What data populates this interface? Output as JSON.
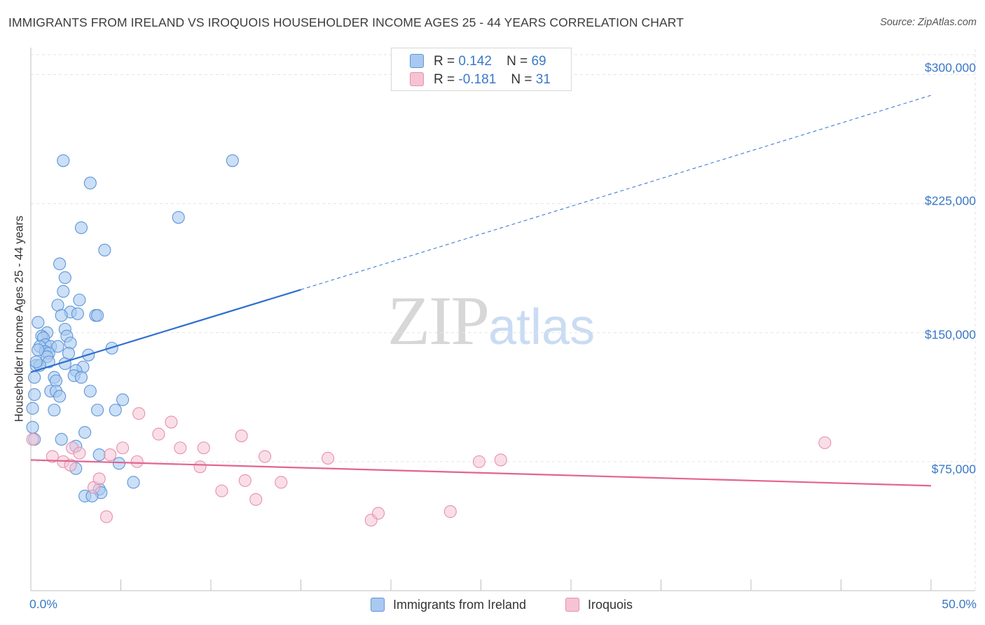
{
  "title": "IMMIGRANTS FROM IRELAND VS IROQUOIS HOUSEHOLDER INCOME AGES 25 - 44 YEARS CORRELATION CHART",
  "source": "Source: ZipAtlas.com",
  "watermark": {
    "zip": "ZIP",
    "atlas": "atlas"
  },
  "legend": {
    "r_label": "R =",
    "n_label": "N =",
    "series": [
      {
        "name": "Immigrants from Ireland",
        "r": "0.142",
        "n": "69"
      },
      {
        "name": "Iroquois",
        "r": "-0.181",
        "n": "31"
      }
    ]
  },
  "colors": {
    "blue_fill": "#a9c9f0",
    "blue_stroke": "#5d95d8",
    "blue_line": "#2f6fcf",
    "pink_fill": "#f6c3d3",
    "pink_stroke": "#e690ad",
    "pink_line": "#e2648f",
    "tick_text": "#3a78c8",
    "grid": "#e3e3e3"
  },
  "chart_data": {
    "type": "scatter",
    "title": "IMMIGRANTS FROM IRELAND VS IROQUOIS HOUSEHOLDER INCOME AGES 25 - 44 YEARS CORRELATION CHART",
    "xlabel": "",
    "ylabel": "Householder Income Ages 25 - 44 years",
    "xlim": [
      0,
      50
    ],
    "ylim": [
      0,
      310000
    ],
    "x_tick_labels": [
      "0.0%",
      "50.0%"
    ],
    "y_ticks": [
      {
        "value": 75000,
        "label": "$75,000"
      },
      {
        "value": 150000,
        "label": "$150,000"
      },
      {
        "value": 225000,
        "label": "$225,000"
      },
      {
        "value": 300000,
        "label": "$300,000"
      }
    ],
    "grid": true,
    "series": [
      {
        "name": "Immigrants from Ireland",
        "color": "#a9c9f0",
        "points": [
          [
            1.8,
            250000
          ],
          [
            11.2,
            250000
          ],
          [
            3.3,
            237000
          ],
          [
            8.2,
            217000
          ],
          [
            2.8,
            211000
          ],
          [
            4.1,
            198000
          ],
          [
            1.6,
            190000
          ],
          [
            1.9,
            182000
          ],
          [
            1.8,
            174000
          ],
          [
            2.7,
            169000
          ],
          [
            1.5,
            166000
          ],
          [
            2.2,
            162000
          ],
          [
            1.7,
            160000
          ],
          [
            2.6,
            161000
          ],
          [
            3.6,
            160000
          ],
          [
            3.7,
            160000
          ],
          [
            0.4,
            156000
          ],
          [
            1.9,
            152000
          ],
          [
            0.9,
            150000
          ],
          [
            0.6,
            148000
          ],
          [
            2.0,
            148000
          ],
          [
            0.7,
            147000
          ],
          [
            2.2,
            144000
          ],
          [
            0.8,
            143000
          ],
          [
            1.1,
            142000
          ],
          [
            1.5,
            142000
          ],
          [
            0.5,
            142000
          ],
          [
            4.5,
            141000
          ],
          [
            0.8,
            139000
          ],
          [
            1.0,
            138000
          ],
          [
            0.9,
            136000
          ],
          [
            3.2,
            137000
          ],
          [
            1.0,
            133000
          ],
          [
            1.9,
            132000
          ],
          [
            0.3,
            131000
          ],
          [
            0.5,
            131000
          ],
          [
            2.9,
            130000
          ],
          [
            2.5,
            128000
          ],
          [
            2.4,
            125000
          ],
          [
            1.3,
            124000
          ],
          [
            2.8,
            124000
          ],
          [
            1.4,
            122000
          ],
          [
            0.2,
            124000
          ],
          [
            3.3,
            116000
          ],
          [
            1.1,
            116000
          ],
          [
            1.4,
            116000
          ],
          [
            0.2,
            114000
          ],
          [
            1.6,
            113000
          ],
          [
            5.1,
            111000
          ],
          [
            0.1,
            106000
          ],
          [
            1.3,
            105000
          ],
          [
            3.7,
            105000
          ],
          [
            4.7,
            105000
          ],
          [
            0.1,
            95000
          ],
          [
            3.0,
            92000
          ],
          [
            1.7,
            88000
          ],
          [
            2.5,
            84000
          ],
          [
            3.8,
            79000
          ],
          [
            4.9,
            74000
          ],
          [
            2.5,
            71000
          ],
          [
            5.7,
            63000
          ],
          [
            3.8,
            59000
          ],
          [
            3.9,
            57000
          ],
          [
            3.0,
            55000
          ],
          [
            3.4,
            55000
          ],
          [
            0.2,
            88000
          ],
          [
            0.4,
            140000
          ],
          [
            0.3,
            133000
          ],
          [
            2.1,
            138000
          ]
        ],
        "trend": {
          "x": [
            0,
            15,
            50
          ],
          "y": [
            127000,
            175000,
            288000
          ]
        }
      },
      {
        "name": "Iroquois",
        "color": "#f6c3d3",
        "points": [
          [
            0.1,
            88000
          ],
          [
            1.2,
            78000
          ],
          [
            2.3,
            83000
          ],
          [
            1.8,
            75000
          ],
          [
            2.2,
            73000
          ],
          [
            2.7,
            80000
          ],
          [
            3.5,
            60000
          ],
          [
            3.8,
            65000
          ],
          [
            4.2,
            43000
          ],
          [
            4.4,
            79000
          ],
          [
            5.1,
            83000
          ],
          [
            5.9,
            75000
          ],
          [
            6.0,
            103000
          ],
          [
            7.1,
            91000
          ],
          [
            7.8,
            98000
          ],
          [
            8.3,
            83000
          ],
          [
            9.4,
            72000
          ],
          [
            9.6,
            83000
          ],
          [
            10.6,
            58000
          ],
          [
            11.7,
            90000
          ],
          [
            11.9,
            64000
          ],
          [
            12.5,
            53000
          ],
          [
            13.0,
            78000
          ],
          [
            13.9,
            63000
          ],
          [
            16.5,
            77000
          ],
          [
            18.9,
            41000
          ],
          [
            19.3,
            45000
          ],
          [
            23.3,
            46000
          ],
          [
            24.9,
            75000
          ],
          [
            26.1,
            76000
          ],
          [
            44.1,
            86000
          ]
        ],
        "trend": {
          "x": [
            0,
            50
          ],
          "y": [
            76000,
            61000
          ]
        }
      }
    ]
  }
}
